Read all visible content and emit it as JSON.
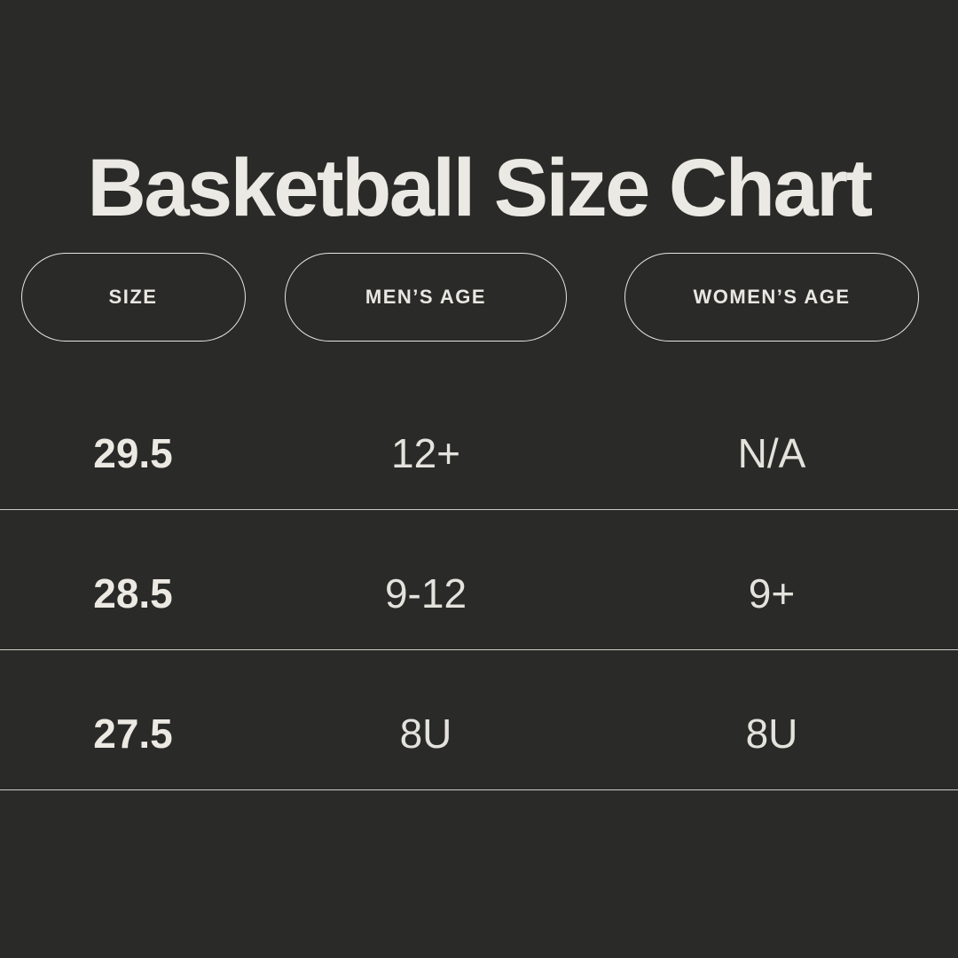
{
  "page": {
    "background": "#2a2a28",
    "text_color": "#ebe9e3",
    "divider_color": "#cfcdc7",
    "pill_border_color": "#e7e5df"
  },
  "title": "Basketball Size Chart",
  "table": {
    "columns": [
      {
        "id": "size",
        "label": "SIZE"
      },
      {
        "id": "mens_age",
        "label": "MEN’S AGE"
      },
      {
        "id": "womens_age",
        "label": "WOMEN’S AGE"
      }
    ],
    "rows": [
      {
        "size": "29.5",
        "mens_age": "12+",
        "womens_age": "N/A"
      },
      {
        "size": "28.5",
        "mens_age": "9-12",
        "womens_age": "9+"
      },
      {
        "size": "27.5",
        "mens_age": "8U",
        "womens_age": "8U"
      }
    ]
  },
  "chart_data": {
    "type": "table",
    "title": "Basketball Size Chart",
    "columns": [
      "SIZE",
      "MEN’S AGE",
      "WOMEN’S AGE"
    ],
    "rows": [
      [
        "29.5",
        "12+",
        "N/A"
      ],
      [
        "28.5",
        "9-12",
        "9+"
      ],
      [
        "27.5",
        "8U",
        "8U"
      ]
    ],
    "layout_hints": {
      "theme": "dark",
      "header_style": "outlined-pill",
      "row_dividers": true
    }
  }
}
